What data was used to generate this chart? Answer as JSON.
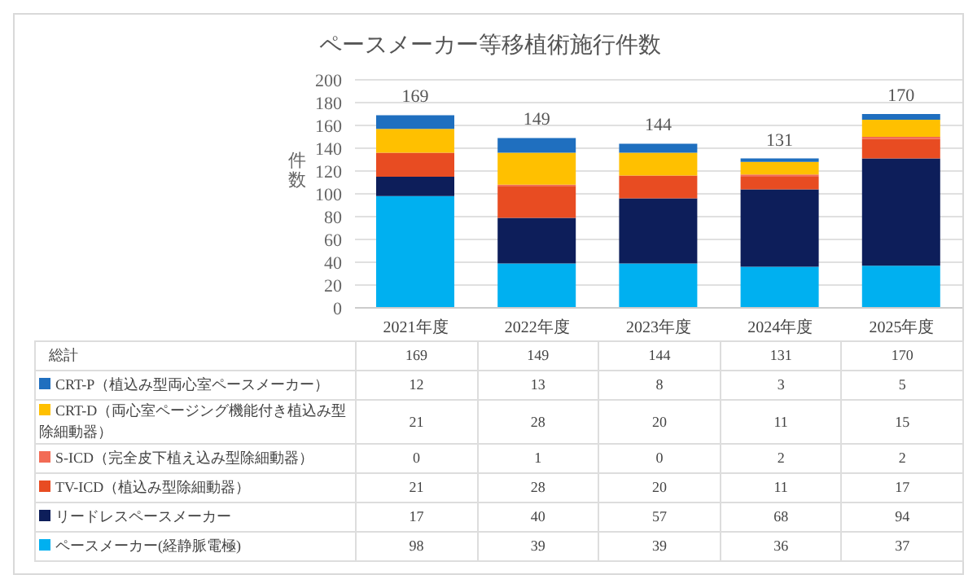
{
  "chart_data": {
    "type": "bar",
    "title": "ペースメーカー等移植術施行件数",
    "ylabel": "件数",
    "categories": [
      "2021年度",
      "2022年度",
      "2023年度",
      "2024年度",
      "2025年度"
    ],
    "stacked": true,
    "series": [
      {
        "name": "ペースメーカー(経静脈電極)",
        "color": "#00b0f0",
        "values": [
          98,
          39,
          39,
          36,
          37
        ],
        "value_labels": [
          "98",
          "39",
          "39",
          "36",
          "37"
        ]
      },
      {
        "name": "リードレスペースメーカー",
        "color": "#0d1e5a",
        "values": [
          17,
          40,
          57,
          68,
          94
        ],
        "value_labels": [
          "17",
          "40",
          "57",
          "68",
          "94"
        ]
      },
      {
        "name": "TV-ICD（植込み型除細動器）",
        "color": "#e84c22",
        "values": [
          21,
          28,
          20,
          11,
          17
        ],
        "value_labels": [
          "21",
          "28",
          "20",
          "11",
          "17"
        ]
      },
      {
        "name": "S-ICD（完全皮下植え込み型除細動器）",
        "color": "#f26b55",
        "values": [
          0,
          1,
          0,
          2,
          2
        ],
        "value_labels": [
          "0",
          "1",
          "0",
          "2",
          "2"
        ]
      },
      {
        "name": "CRT-D（両心室ページング機能付き植込み型除細動器）",
        "color": "#ffc000",
        "values": [
          21,
          28,
          20,
          11,
          15
        ],
        "value_labels": [
          "21",
          "28",
          "20",
          "11",
          "15"
        ]
      },
      {
        "name": "CRT-P（植込み型両心室ペースメーカー）",
        "color": "#1f6fbf",
        "values": [
          12,
          13,
          8,
          3,
          5
        ],
        "value_labels": [
          "12",
          "13",
          "8",
          "3",
          "5"
        ]
      }
    ],
    "totals": [
      "169",
      "149",
      "144",
      "131",
      "170"
    ],
    "annotations": [
      "総計"
    ],
    "ylim": [
      0,
      200
    ],
    "yticks": [
      0,
      20,
      40,
      60,
      80,
      100,
      120,
      140,
      160,
      180,
      200
    ],
    "grid": "y",
    "legend": "bottom"
  }
}
